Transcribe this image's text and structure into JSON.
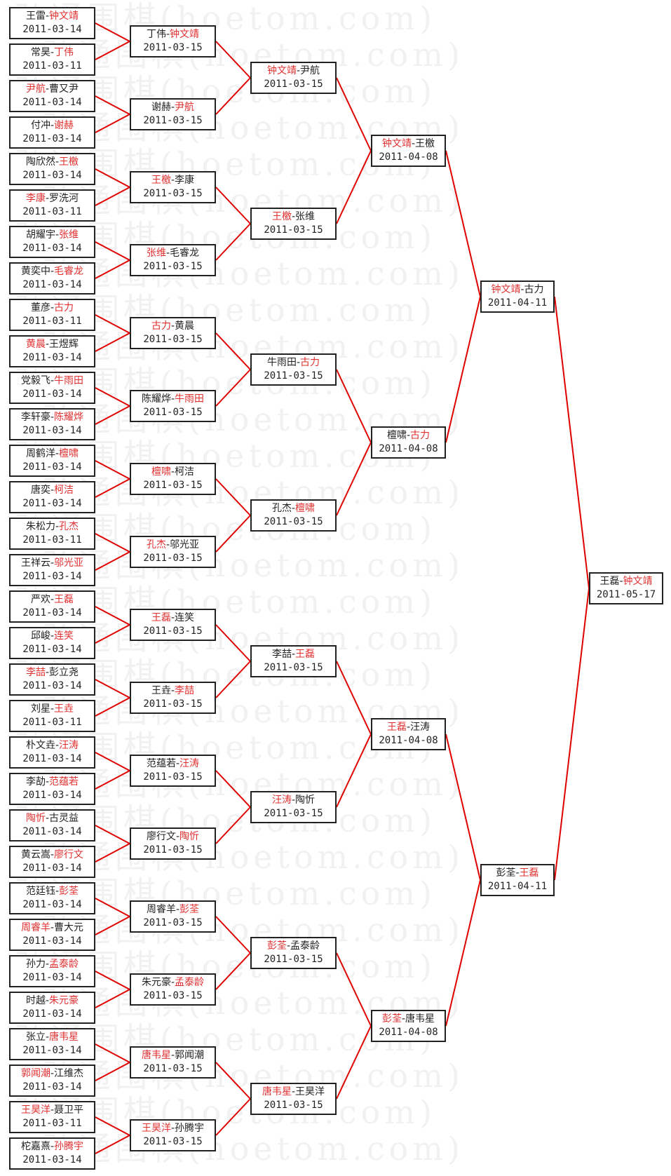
{
  "watermark": "弘通围棋(hoetom.com)",
  "colors": {
    "winner": "#e03030",
    "line": "#e00000",
    "border": "#222222"
  },
  "separator": "-",
  "rounds": [
    [
      {
        "a": "王雷",
        "b": "钟文靖",
        "w": "b",
        "date": "2011-03-14"
      },
      {
        "a": "常昊",
        "b": "丁伟",
        "w": "b",
        "date": "2011-03-11"
      },
      {
        "a": "尹航",
        "b": "曹又尹",
        "w": "a",
        "date": "2011-03-14"
      },
      {
        "a": "付冲",
        "b": "谢赫",
        "w": "b",
        "date": "2011-03-14"
      },
      {
        "a": "陶欣然",
        "b": "王檄",
        "w": "b",
        "date": "2011-03-14"
      },
      {
        "a": "李康",
        "b": "罗洗河",
        "w": "a",
        "date": "2011-03-11"
      },
      {
        "a": "胡耀宇",
        "b": "张维",
        "w": "b",
        "date": "2011-03-14"
      },
      {
        "a": "黄奕中",
        "b": "毛睿龙",
        "w": "b",
        "date": "2011-03-14"
      },
      {
        "a": "董彦",
        "b": "古力",
        "w": "b",
        "date": "2011-03-11"
      },
      {
        "a": "黄晨",
        "b": "王煜辉",
        "w": "a",
        "date": "2011-03-14"
      },
      {
        "a": "党毅飞",
        "b": "牛雨田",
        "w": "b",
        "date": "2011-03-14"
      },
      {
        "a": "李轩豪",
        "b": "陈耀烨",
        "w": "b",
        "date": "2011-03-14"
      },
      {
        "a": "周鹤洋",
        "b": "檀啸",
        "w": "b",
        "date": "2011-03-14"
      },
      {
        "a": "唐奕",
        "b": "柯洁",
        "w": "b",
        "date": "2011-03-14"
      },
      {
        "a": "朱松力",
        "b": "孔杰",
        "w": "b",
        "date": "2011-03-11"
      },
      {
        "a": "王祥云",
        "b": "邬光亚",
        "w": "b",
        "date": "2011-03-14"
      },
      {
        "a": "严欢",
        "b": "王磊",
        "w": "b",
        "date": "2011-03-14"
      },
      {
        "a": "邱峻",
        "b": "连笑",
        "w": "b",
        "date": "2011-03-14"
      },
      {
        "a": "李喆",
        "b": "彭立尧",
        "w": "a",
        "date": "2011-03-14"
      },
      {
        "a": "刘星",
        "b": "王垚",
        "w": "b",
        "date": "2011-03-11"
      },
      {
        "a": "朴文垚",
        "b": "汪涛",
        "w": "b",
        "date": "2011-03-14"
      },
      {
        "a": "李劼",
        "b": "范蕴若",
        "w": "b",
        "date": "2011-03-14"
      },
      {
        "a": "陶忻",
        "b": "古灵益",
        "w": "a",
        "date": "2011-03-14"
      },
      {
        "a": "黄云嵩",
        "b": "廖行文",
        "w": "b",
        "date": "2011-03-14"
      },
      {
        "a": "范廷钰",
        "b": "彭荃",
        "w": "b",
        "date": "2011-03-14"
      },
      {
        "a": "周睿羊",
        "b": "曹大元",
        "w": "a",
        "date": "2011-03-14"
      },
      {
        "a": "孙力",
        "b": "孟泰龄",
        "w": "b",
        "date": "2011-03-14"
      },
      {
        "a": "时越",
        "b": "朱元豪",
        "w": "b",
        "date": "2011-03-14"
      },
      {
        "a": "张立",
        "b": "唐韦星",
        "w": "b",
        "date": "2011-03-14"
      },
      {
        "a": "郭闻潮",
        "b": "江维杰",
        "w": "a",
        "date": "2011-03-14"
      },
      {
        "a": "王昊洋",
        "b": "聂卫平",
        "w": "a",
        "date": "2011-03-11"
      },
      {
        "a": "柁嘉熹",
        "b": "孙腾宇",
        "w": "b",
        "date": "2011-03-14"
      }
    ],
    [
      {
        "a": "丁伟",
        "b": "钟文靖",
        "w": "b",
        "date": "2011-03-15"
      },
      {
        "a": "谢赫",
        "b": "尹航",
        "w": "b",
        "date": "2011-03-15"
      },
      {
        "a": "王檄",
        "b": "李康",
        "w": "a",
        "date": "2011-03-15"
      },
      {
        "a": "张维",
        "b": "毛睿龙",
        "w": "a",
        "date": "2011-03-15"
      },
      {
        "a": "古力",
        "b": "黄晨",
        "w": "a",
        "date": "2011-03-15"
      },
      {
        "a": "陈耀烨",
        "b": "牛雨田",
        "w": "b",
        "date": "2011-03-15"
      },
      {
        "a": "檀啸",
        "b": "柯洁",
        "w": "a",
        "date": "2011-03-15"
      },
      {
        "a": "孔杰",
        "b": "邬光亚",
        "w": "a",
        "date": "2011-03-15"
      },
      {
        "a": "王磊",
        "b": "连笑",
        "w": "a",
        "date": "2011-03-15"
      },
      {
        "a": "王垚",
        "b": "李喆",
        "w": "b",
        "date": "2011-03-15"
      },
      {
        "a": "范蕴若",
        "b": "汪涛",
        "w": "b",
        "date": "2011-03-15"
      },
      {
        "a": "廖行文",
        "b": "陶忻",
        "w": "b",
        "date": "2011-03-15"
      },
      {
        "a": "周睿羊",
        "b": "彭荃",
        "w": "b",
        "date": "2011-03-15"
      },
      {
        "a": "朱元豪",
        "b": "孟泰龄",
        "w": "b",
        "date": "2011-03-15"
      },
      {
        "a": "唐韦星",
        "b": "郭闻潮",
        "w": "a",
        "date": "2011-03-15"
      },
      {
        "a": "王昊洋",
        "b": "孙腾宇",
        "w": "a",
        "date": "2011-03-15"
      }
    ],
    [
      {
        "a": "钟文靖",
        "b": "尹航",
        "w": "a",
        "date": "2011-03-15"
      },
      {
        "a": "王檄",
        "b": "张维",
        "w": "a",
        "date": "2011-03-15"
      },
      {
        "a": "牛雨田",
        "b": "古力",
        "w": "b",
        "date": "2011-03-15"
      },
      {
        "a": "孔杰",
        "b": "檀啸",
        "w": "b",
        "date": "2011-03-15"
      },
      {
        "a": "李喆",
        "b": "王磊",
        "w": "b",
        "date": "2011-03-15"
      },
      {
        "a": "汪涛",
        "b": "陶忻",
        "w": "a",
        "date": "2011-03-15"
      },
      {
        "a": "彭荃",
        "b": "孟泰龄",
        "w": "a",
        "date": "2011-03-15"
      },
      {
        "a": "唐韦星",
        "b": "王昊洋",
        "w": "a",
        "date": "2011-03-15"
      }
    ],
    [
      {
        "a": "钟文靖",
        "b": "王檄",
        "w": "a",
        "date": "2011-04-08"
      },
      {
        "a": "檀啸",
        "b": "古力",
        "w": "b",
        "date": "2011-04-08"
      },
      {
        "a": "王磊",
        "b": "汪涛",
        "w": "a",
        "date": "2011-04-08"
      },
      {
        "a": "彭荃",
        "b": "唐韦星",
        "w": "a",
        "date": "2011-04-08"
      }
    ],
    [
      {
        "a": "钟文靖",
        "b": "古力",
        "w": "a",
        "date": "2011-04-11"
      },
      {
        "a": "彭荃",
        "b": "王磊",
        "w": "b",
        "date": "2011-04-11"
      }
    ],
    [
      {
        "a": "王磊",
        "b": "钟文靖",
        "w": "b",
        "date": "2011-05-17"
      }
    ]
  ]
}
